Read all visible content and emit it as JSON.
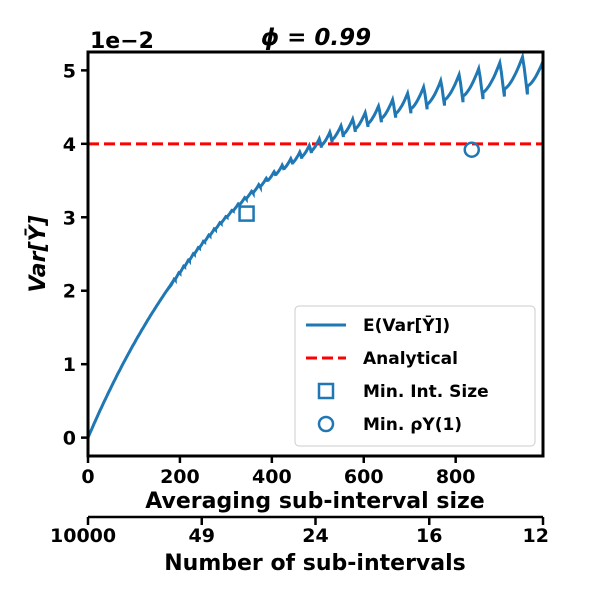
{
  "chart_data": {
    "type": "line",
    "title": "ϕ = 0.99",
    "offset_label": "1e−2",
    "ylabel": "Var[Ȳ]",
    "xlabel": "Averaging sub-interval size",
    "x2label": "Number of sub-intervals",
    "xlim": [
      0,
      990
    ],
    "ylim": [
      -0.25,
      5.25
    ],
    "xticks": [
      0,
      200,
      400,
      600,
      800
    ],
    "yticks": [
      0,
      1,
      2,
      3,
      4,
      5
    ],
    "x2ticks": [
      "10000",
      "49",
      "24",
      "16",
      "12"
    ],
    "colors": {
      "series": "#1f77b4",
      "analytical": "#ff0000"
    },
    "analytical_value": 4.0,
    "series": [
      {
        "name": "E(Var[Ȳ])",
        "style": "solid",
        "color": "#1f77b4"
      },
      {
        "name": "Analytical",
        "style": "dashed",
        "color": "#ff0000"
      }
    ],
    "markers": [
      {
        "name": "Min. Int. Size",
        "shape": "square",
        "x": 345,
        "y": 3.05
      },
      {
        "name": "Min. ρY(1)",
        "shape": "circle",
        "x": 835,
        "y": 3.92
      }
    ],
    "legend": {
      "placement": "lower-right",
      "entries": [
        "E(Var[Ȳ])",
        "Analytical",
        "Min. Int. Size",
        "Min. ρY(1)"
      ]
    },
    "grid": false
  }
}
